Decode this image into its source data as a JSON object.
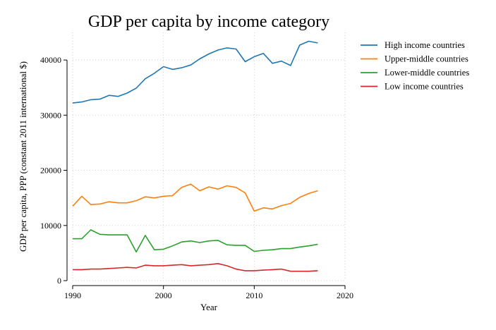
{
  "chart_data": {
    "type": "line",
    "title": "GDP per capita by income category",
    "xlabel": "Year",
    "ylabel": "GDP per capita, PPP (constant 2011 international $)",
    "xlim": [
      1990,
      2020
    ],
    "ylim": [
      0,
      45000
    ],
    "x_ticks": [
      1990,
      2000,
      2010,
      2020
    ],
    "y_ticks": [
      0,
      10000,
      20000,
      30000,
      40000
    ],
    "x_tick_labels": [
      "1990",
      "2000",
      "2010",
      "2020"
    ],
    "y_tick_labels": [
      "0",
      "10000",
      "20000",
      "30000",
      "40000"
    ],
    "grid": true,
    "legend_position": "right",
    "x": [
      1990,
      1991,
      1992,
      1993,
      1994,
      1995,
      1996,
      1997,
      1998,
      1999,
      2000,
      2001,
      2002,
      2003,
      2004,
      2005,
      2006,
      2007,
      2008,
      2009,
      2010,
      2011,
      2012,
      2013,
      2014,
      2015,
      2016,
      2017
    ],
    "series": [
      {
        "name": "High income countries",
        "color": "#1f77b4",
        "values": [
          32200,
          32400,
          32800,
          32900,
          33600,
          33400,
          34000,
          34900,
          36600,
          37600,
          38800,
          38300,
          38600,
          39100,
          40200,
          41100,
          41800,
          42200,
          42000,
          39700,
          40600,
          41200,
          39400,
          39800,
          39000,
          42700,
          43400,
          43100
        ]
      },
      {
        "name": "Upper-middle countries",
        "color": "#ff7f0e",
        "values": [
          13500,
          15300,
          13800,
          13900,
          14300,
          14100,
          14100,
          14500,
          15200,
          15000,
          15300,
          15400,
          16900,
          17500,
          16300,
          17000,
          16600,
          17200,
          16900,
          15900,
          12600,
          13200,
          13000,
          13600,
          14000,
          15100,
          15800,
          16300
        ]
      },
      {
        "name": "Lower-middle countries",
        "color": "#2ca02c",
        "values": [
          7600,
          7600,
          9200,
          8400,
          8300,
          8300,
          8300,
          5200,
          8200,
          5600,
          5700,
          6300,
          7000,
          7200,
          6900,
          7200,
          7300,
          6500,
          6400,
          6400,
          5300,
          5500,
          5600,
          5800,
          5800,
          6100,
          6300,
          6600
        ]
      },
      {
        "name": "Low income countries",
        "color": "#d62728",
        "values": [
          2000,
          2000,
          2100,
          2100,
          2200,
          2300,
          2400,
          2300,
          2800,
          2700,
          2700,
          2800,
          2900,
          2700,
          2800,
          2900,
          3100,
          2700,
          2100,
          1800,
          1800,
          1900,
          2000,
          2100,
          1700,
          1700,
          1700,
          1800
        ]
      }
    ]
  }
}
